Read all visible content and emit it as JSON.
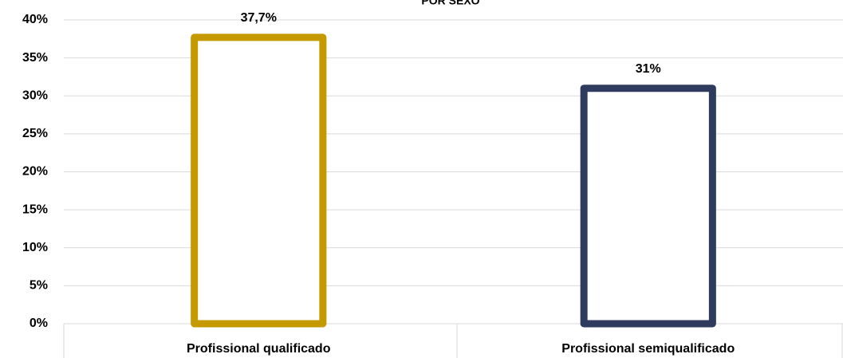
{
  "chart_data": {
    "type": "bar",
    "title": "POR SEXO",
    "categories": [
      "Profissional qualificado",
      "Profissional semiqualificado"
    ],
    "series": [
      {
        "name": null,
        "colors": [
          "#c49a00",
          "#2f3a5f"
        ],
        "values": [
          37.7,
          31
        ],
        "value_labels": [
          "37,7%",
          "31%"
        ]
      }
    ],
    "ylim": [
      0,
      40
    ],
    "yticks": [
      {
        "value": 0,
        "label": "0%"
      },
      {
        "value": 5,
        "label": "5%"
      },
      {
        "value": 10,
        "label": "10%"
      },
      {
        "value": 15,
        "label": "15%"
      },
      {
        "value": 20,
        "label": "20%"
      },
      {
        "value": 25,
        "label": "25%"
      },
      {
        "value": 30,
        "label": "30%"
      },
      {
        "value": 35,
        "label": "35%"
      },
      {
        "value": 40,
        "label": "40%"
      }
    ],
    "grid": true
  }
}
